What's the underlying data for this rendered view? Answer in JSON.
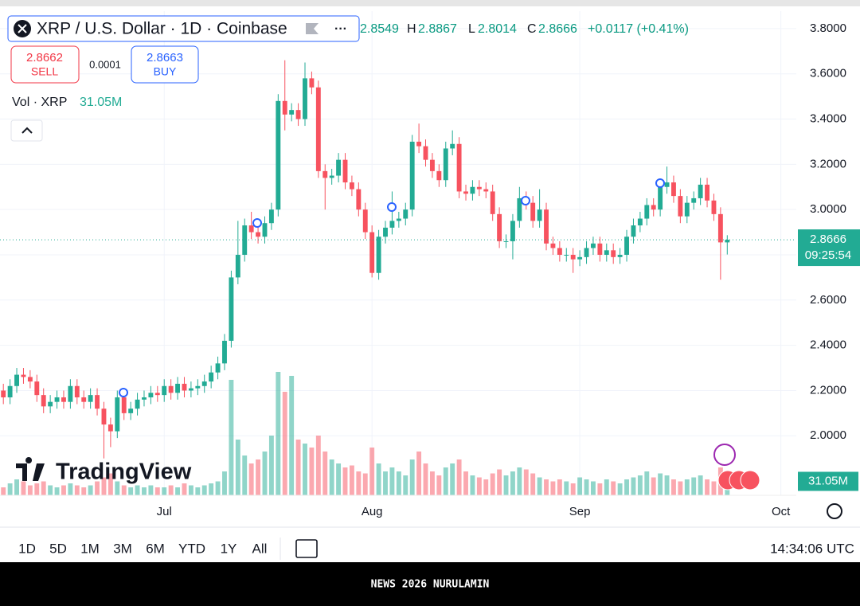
{
  "header": {
    "symbol": "XRP / U.S. Dollar · 1D · Coinbase",
    "h": "H",
    "l": "L",
    "c": "C",
    "change": "+0.0117 (+0.41%)",
    "sell_price": "2.8662",
    "sell": "SELL",
    "spread": "0.0001",
    "buy_price": "2.8663",
    "buy": "BUY",
    "volume_title": "Vol · XRP"
  },
  "chart_data": {
    "type": "candlestick",
    "open": [
      2.2,
      2.17,
      2.22,
      2.27,
      2.26,
      2.24,
      2.18,
      2.13,
      2.15,
      2.17,
      2.15,
      2.22,
      2.17,
      2.15,
      2.18,
      2.12,
      2.05,
      2.02,
      2.17,
      2.1,
      2.12,
      2.16,
      2.17,
      2.19,
      2.18,
      2.22,
      2.19,
      2.23,
      2.2,
      2.21,
      2.22,
      2.24,
      2.28,
      2.32,
      2.42,
      2.7,
      2.8,
      2.93,
      2.9,
      2.88,
      2.94,
      3.0,
      3.48,
      3.42,
      3.44,
      3.4,
      3.58,
      3.54,
      3.17,
      3.14,
      3.15,
      3.22,
      3.12,
      3.09,
      3.0,
      2.9,
      2.72,
      2.88,
      2.92,
      2.95,
      2.96,
      3.0,
      3.3,
      3.28,
      3.22,
      3.17,
      3.13,
      3.27,
      3.29,
      3.08,
      3.07,
      3.1,
      3.09,
      3.08,
      2.98,
      2.86,
      2.86,
      2.95,
      3.05,
      3.03,
      2.95,
      3.0,
      2.85,
      2.83,
      2.8,
      2.8,
      2.78,
      2.79,
      2.83,
      2.85,
      2.8,
      2.82,
      2.79,
      2.8,
      2.88,
      2.93,
      2.96,
      3.02,
      3.0,
      3.1,
      3.12,
      3.06,
      2.97,
      3.03,
      3.05,
      3.11,
      3.04,
      2.98,
      2.8549
    ],
    "high": [
      2.23,
      2.25,
      2.3,
      2.3,
      2.29,
      2.27,
      2.21,
      2.18,
      2.2,
      2.2,
      2.25,
      2.25,
      2.2,
      2.21,
      2.21,
      2.15,
      2.08,
      2.2,
      2.2,
      2.15,
      2.19,
      2.2,
      2.22,
      2.22,
      2.25,
      2.25,
      2.26,
      2.26,
      2.24,
      2.25,
      2.27,
      2.31,
      2.35,
      2.45,
      2.73,
      2.95,
      2.96,
      2.99,
      2.93,
      2.97,
      3.03,
      3.51,
      3.66,
      3.47,
      3.47,
      3.65,
      3.61,
      3.57,
      3.2,
      3.18,
      3.25,
      3.25,
      3.15,
      3.12,
      3.03,
      2.93,
      2.91,
      2.95,
      3.08,
      2.99,
      3.03,
      3.33,
      3.38,
      3.31,
      3.25,
      3.2,
      3.3,
      3.35,
      3.32,
      3.11,
      3.13,
      3.13,
      3.12,
      3.11,
      3.01,
      2.89,
      2.98,
      3.1,
      3.08,
      3.06,
      3.09,
      3.03,
      2.88,
      2.86,
      2.83,
      2.83,
      2.82,
      2.86,
      2.88,
      2.88,
      2.85,
      2.85,
      2.83,
      2.91,
      2.96,
      2.99,
      3.05,
      3.05,
      3.13,
      3.19,
      3.15,
      3.09,
      3.06,
      3.08,
      3.14,
      3.14,
      3.07,
      3.01,
      2.8867
    ],
    "low": [
      2.14,
      2.14,
      2.19,
      2.23,
      2.21,
      2.15,
      2.1,
      2.1,
      2.12,
      2.12,
      2.12,
      2.14,
      2.12,
      2.12,
      2.09,
      1.9,
      1.95,
      1.99,
      2.07,
      2.07,
      2.09,
      2.13,
      2.14,
      2.15,
      2.15,
      2.16,
      2.16,
      2.17,
      2.17,
      2.18,
      2.19,
      2.21,
      2.25,
      2.29,
      2.39,
      2.67,
      2.77,
      2.87,
      2.85,
      2.85,
      2.91,
      2.97,
      3.35,
      3.39,
      3.37,
      3.37,
      3.51,
      3.14,
      3.0,
      3.11,
      3.12,
      3.09,
      3.06,
      2.97,
      2.87,
      2.7,
      2.69,
      2.85,
      2.89,
      2.92,
      2.93,
      2.97,
      3.25,
      3.19,
      3.14,
      3.1,
      3.1,
      3.24,
      3.05,
      3.04,
      3.04,
      3.06,
      3.05,
      2.95,
      2.83,
      2.83,
      2.78,
      2.92,
      3.0,
      2.92,
      2.92,
      2.82,
      2.8,
      2.77,
      2.77,
      2.72,
      2.75,
      2.76,
      2.8,
      2.77,
      2.77,
      2.76,
      2.76,
      2.77,
      2.85,
      2.9,
      2.93,
      2.97,
      2.97,
      3.07,
      3.03,
      2.94,
      2.94,
      3.0,
      3.02,
      3.01,
      2.95,
      2.69,
      2.8014
    ],
    "close": [
      2.17,
      2.22,
      2.27,
      2.26,
      2.24,
      2.18,
      2.13,
      2.15,
      2.17,
      2.15,
      2.22,
      2.17,
      2.15,
      2.18,
      2.12,
      2.05,
      2.02,
      2.17,
      2.1,
      2.12,
      2.16,
      2.17,
      2.19,
      2.18,
      2.22,
      2.19,
      2.23,
      2.2,
      2.21,
      2.22,
      2.24,
      2.28,
      2.32,
      2.42,
      2.7,
      2.8,
      2.93,
      2.9,
      2.88,
      2.94,
      3.0,
      3.48,
      3.42,
      3.44,
      3.4,
      3.58,
      3.54,
      3.17,
      3.14,
      3.15,
      3.22,
      3.12,
      3.09,
      3.0,
      2.9,
      2.72,
      2.88,
      2.92,
      2.95,
      2.96,
      3.0,
      3.3,
      3.28,
      3.22,
      3.17,
      3.13,
      3.27,
      3.29,
      3.08,
      3.07,
      3.1,
      3.09,
      3.08,
      2.98,
      2.86,
      2.86,
      2.95,
      3.05,
      3.03,
      2.95,
      3.0,
      2.85,
      2.83,
      2.8,
      2.8,
      2.78,
      2.79,
      2.83,
      2.85,
      2.8,
      2.82,
      2.79,
      2.8,
      2.88,
      2.93,
      2.96,
      3.02,
      3.0,
      3.1,
      3.12,
      3.06,
      2.97,
      3.03,
      3.05,
      3.11,
      3.04,
      2.98,
      2.8549,
      2.8666
    ],
    "volume": [
      20,
      30,
      40,
      35,
      25,
      30,
      35,
      25,
      20,
      25,
      30,
      25,
      20,
      25,
      35,
      45,
      55,
      35,
      25,
      20,
      25,
      20,
      25,
      20,
      20,
      25,
      20,
      30,
      25,
      20,
      25,
      30,
      35,
      60,
      290,
      140,
      100,
      80,
      90,
      110,
      150,
      310,
      260,
      300,
      140,
      130,
      120,
      150,
      110,
      90,
      80,
      70,
      75,
      60,
      55,
      120,
      80,
      60,
      70,
      60,
      50,
      90,
      110,
      80,
      60,
      50,
      70,
      80,
      90,
      60,
      50,
      45,
      40,
      55,
      65,
      50,
      60,
      70,
      65,
      55,
      45,
      40,
      35,
      40,
      35,
      30,
      45,
      40,
      35,
      30,
      40,
      35,
      30,
      40,
      45,
      50,
      60,
      45,
      55,
      50,
      40,
      35,
      40,
      45,
      50,
      40,
      35,
      70,
      31.05
    ],
    "volume_last_label": "31.05M",
    "countdown": "09:25:54",
    "up_color": "#22ab94",
    "down_color": "#f7525f",
    "xlim": [
      -0.5,
      118.3
    ],
    "xticks": [
      {
        "value": 24,
        "label": "Jul"
      },
      {
        "value": 55,
        "label": "Aug"
      },
      {
        "value": 86,
        "label": "Sep"
      },
      {
        "value": 116,
        "label": "Oct"
      }
    ],
    "ylim": [
      1.737,
      3.877
    ],
    "yticks": [
      {
        "value": 2.0,
        "label": "2.0000"
      },
      {
        "value": 2.2,
        "label": "2.2000"
      },
      {
        "value": 2.4,
        "label": "2.4000"
      },
      {
        "value": 2.6,
        "label": "2.6000"
      },
      {
        "value": 2.8,
        "label": "2.8000"
      },
      {
        "value": 3.0,
        "label": "3.0000"
      },
      {
        "value": 3.2,
        "label": "3.2000"
      },
      {
        "value": 3.4,
        "label": "3.4000"
      },
      {
        "value": 3.6,
        "label": "3.6000"
      },
      {
        "value": 3.8,
        "label": "3.8000"
      }
    ],
    "grid": true
  },
  "toolbar": {
    "ranges": [
      "1D",
      "5D",
      "1M",
      "3M",
      "6M",
      "YTD",
      "1Y",
      "All"
    ],
    "time": "14:34:06 UTC"
  },
  "logo": "TradingView",
  "banner": "NEWS 2026 NURULAMIN"
}
